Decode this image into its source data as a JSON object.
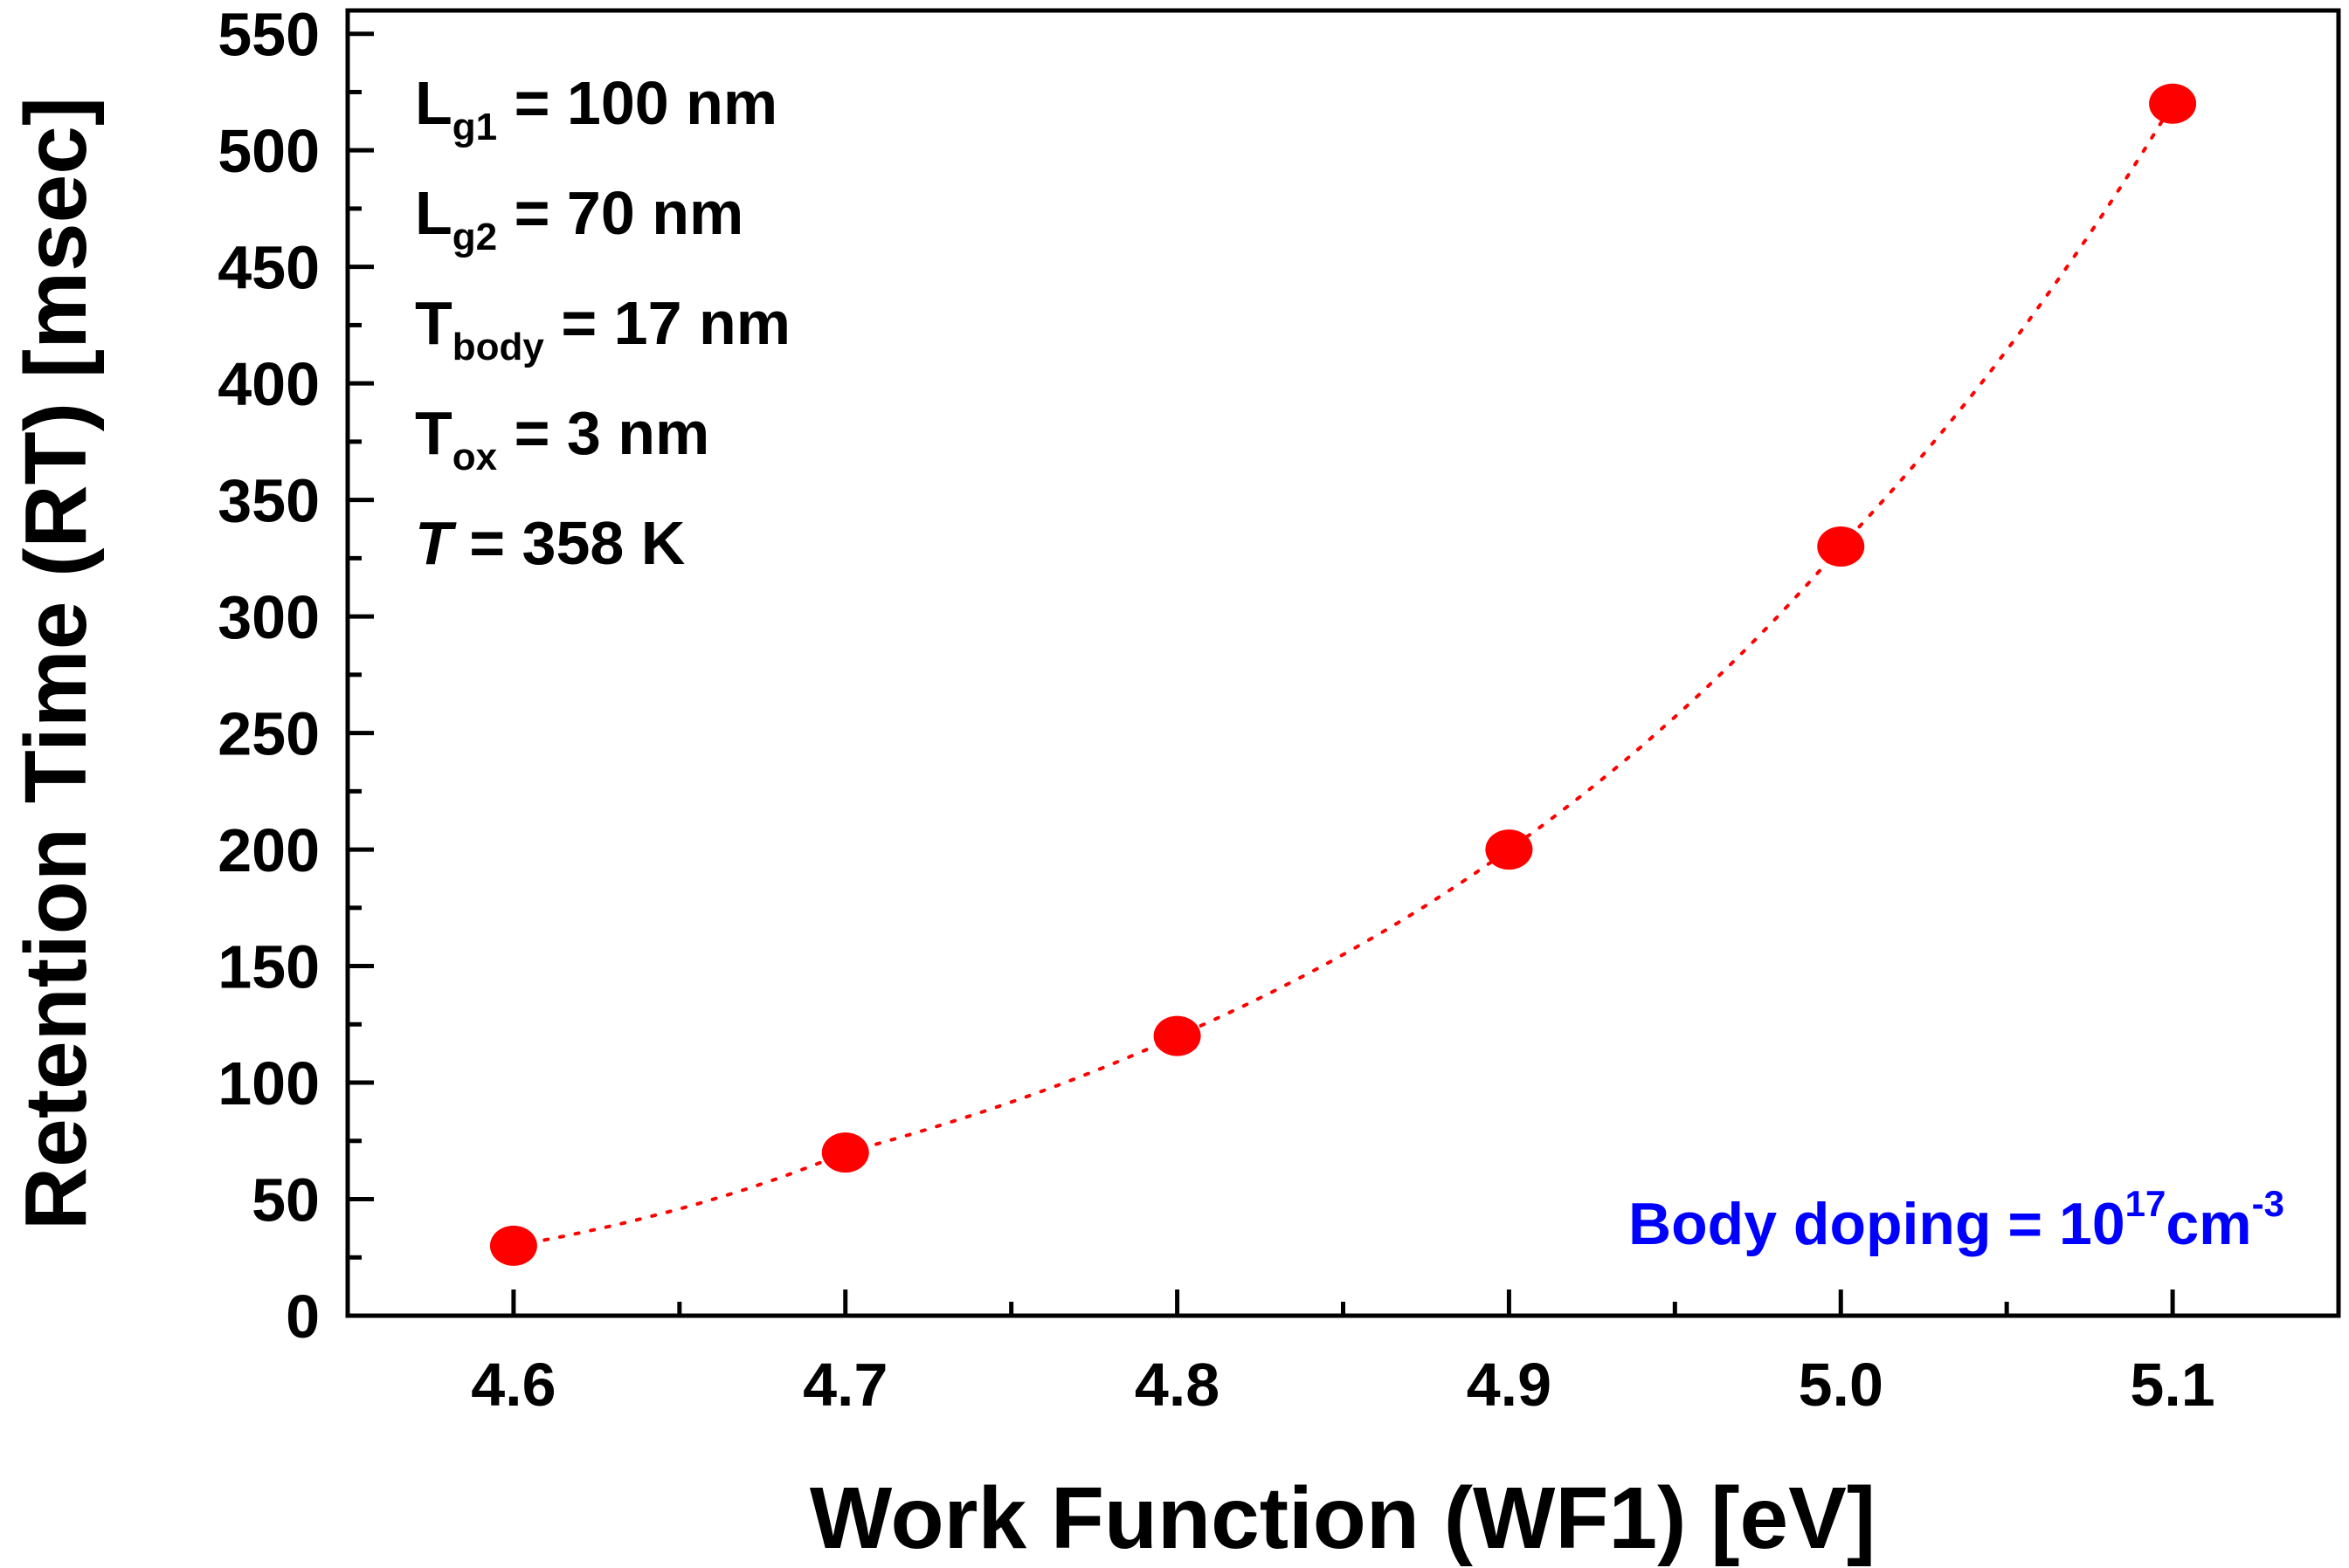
{
  "chart_data": {
    "type": "scatter",
    "xlabel": "Work Function (WF1) [eV]",
    "ylabel": "Retention Time (RT) [msec]",
    "xlim": [
      4.55,
      5.15
    ],
    "ylim": [
      0,
      560
    ],
    "x_ticks": [
      "4.6",
      "4.7",
      "4.8",
      "4.9",
      "5.0",
      "5.1"
    ],
    "y_ticks": [
      "0",
      "50",
      "100",
      "150",
      "200",
      "250",
      "300",
      "350",
      "400",
      "450",
      "500",
      "550"
    ],
    "grid": false,
    "series": [
      {
        "x": [
          4.6,
          4.7,
          4.8,
          4.9,
          5.0,
          5.1
        ],
        "values": [
          30,
          70,
          120,
          200,
          330,
          520
        ],
        "marker": "circle",
        "fit_line": "dotted"
      }
    ],
    "series_color": "#ff0000",
    "annotations": {
      "params": [
        {
          "main": "L",
          "sub": "g1",
          "rest": " = 100 nm"
        },
        {
          "main": "L",
          "sub": "g2",
          "rest": " = 70 nm"
        },
        {
          "main": "T",
          "sub": "body",
          "rest": " = 17 nm"
        },
        {
          "main": "T",
          "sub": "ox",
          "rest": " = 3 nm"
        },
        {
          "main": "T",
          "sub": "",
          "rest": " = 358 K"
        }
      ],
      "doping": {
        "text": "Body doping = 10",
        "sup1": "17",
        "unit": "cm",
        "sup2": "-3"
      },
      "doping_color": "#0000ff"
    }
  }
}
